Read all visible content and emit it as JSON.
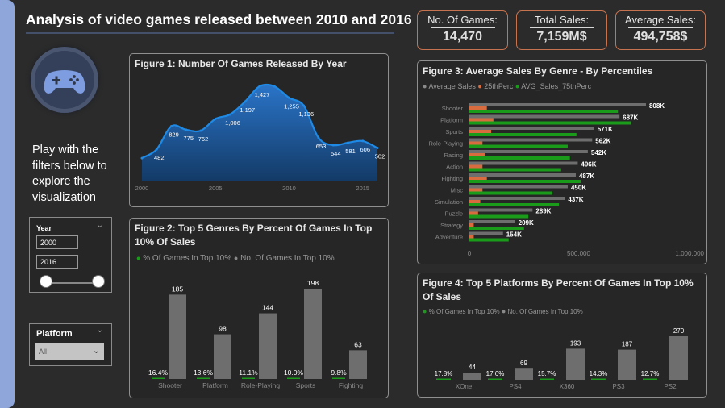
{
  "header": {
    "title": "Analysis of video games released between 2010 and 2016"
  },
  "kpis": [
    {
      "label": "No. Of Games:",
      "value": "14,470"
    },
    {
      "label": "Total Sales:",
      "value": "7,159M$"
    },
    {
      "label": "Average Sales:",
      "value": "494,758$"
    }
  ],
  "sidebar": {
    "logo_icon": "gamepad-icon",
    "text": "Play with the filters below to explore the visualization",
    "year_slicer": {
      "title": "Year",
      "from": "2000",
      "to": "2016"
    },
    "platform_slicer": {
      "title": "Platform",
      "selected": "All"
    }
  },
  "colors": {
    "blue_line": "#1f8ae6",
    "grey_bar": "#6e6e6e",
    "orange": "#d96c3e",
    "green": "#1a9b1a"
  },
  "chart_data": [
    {
      "id": "fig1",
      "type": "area",
      "title": "Figure 1: Number Of Games Released By Year",
      "xticks": [
        "2000",
        "2005",
        "2010",
        "2015"
      ],
      "x": [
        2000,
        2001,
        2002,
        2003,
        2004,
        2005,
        2006,
        2007,
        2008,
        2009,
        2010,
        2011,
        2012,
        2013,
        2014,
        2015,
        2016
      ],
      "values": [
        350,
        482,
        829,
        775,
        762,
        939,
        1006,
        1197,
        1427,
        1426,
        1255,
        1136,
        653,
        544,
        581,
        606,
        502
      ],
      "labels": [
        "",
        "482",
        "829",
        "775",
        "762",
        "",
        "1,006",
        "1,197",
        "1,427",
        "",
        "1,255",
        "1,136",
        "653",
        "544",
        "581",
        "606",
        "502"
      ],
      "ylim": [
        0,
        1500
      ]
    },
    {
      "id": "fig2",
      "type": "bar",
      "title_lines": [
        "Figure 2: Top 5 Genres By Percent Of Games In Top",
        "10% Of Sales"
      ],
      "legend": [
        "% Of Games In Top 10%",
        "No. Of Games In Top 10%"
      ],
      "categories": [
        "Shooter",
        "Platform",
        "Role-Playing",
        "Sports",
        "Fighting"
      ],
      "series": [
        {
          "name": "% Of Games In Top 10%",
          "values": [
            16.4,
            13.6,
            11.1,
            10.0,
            9.8
          ],
          "labels": [
            "16.4%",
            "13.6%",
            "11.1%",
            "10.0%",
            "9.8%"
          ]
        },
        {
          "name": "No. Of Games In Top 10%",
          "values": [
            185,
            98,
            144,
            198,
            63
          ],
          "labels": [
            "185",
            "98",
            "144",
            "198",
            "63"
          ]
        }
      ]
    },
    {
      "id": "fig3",
      "type": "bar",
      "orientation": "horizontal",
      "title": "Figure 3: Average Sales By Genre - By Percentiles",
      "legend": [
        "Average Sales",
        "25thPerc",
        "AVG_Sales_75thPerc"
      ],
      "categories": [
        "Shooter",
        "Platform",
        "Sports",
        "Role-Playing",
        "Racing",
        "Action",
        "Fighting",
        "Misc",
        "Simulation",
        "Puzzle",
        "Strategy",
        "Adventure"
      ],
      "series": [
        {
          "name": "Average Sales",
          "values": [
            808000,
            687000,
            571000,
            562000,
            542000,
            496000,
            487000,
            450000,
            437000,
            289000,
            209000,
            154000
          ],
          "labels": [
            "808K",
            "687K",
            "571K",
            "562K",
            "542K",
            "496K",
            "487K",
            "450K",
            "437K",
            "289K",
            "209K",
            "154K"
          ]
        },
        {
          "name": "25thPerc",
          "values": [
            80000,
            110000,
            100000,
            60000,
            70000,
            60000,
            80000,
            60000,
            50000,
            40000,
            20000,
            20000
          ]
        },
        {
          "name": "AVG_Sales_75thPerc",
          "values": [
            680000,
            740000,
            490000,
            450000,
            460000,
            420000,
            510000,
            380000,
            410000,
            270000,
            250000,
            180000
          ]
        }
      ],
      "xticks": [
        "0",
        "500,000",
        "1,000,000"
      ],
      "xlim": [
        0,
        1000000
      ]
    },
    {
      "id": "fig4",
      "type": "bar",
      "title_lines": [
        "Figure 4: Top 5 Platforms By Percent Of Games In Top 10%",
        "Of Sales"
      ],
      "legend": [
        "% Of Games In Top 10%",
        "No. Of Games In Top 10%"
      ],
      "categories": [
        "XOne",
        "PS4",
        "X360",
        "PS3",
        "PS2"
      ],
      "series": [
        {
          "name": "% Of Games In Top 10%",
          "values": [
            17.8,
            17.6,
            15.7,
            14.3,
            12.7
          ],
          "labels": [
            "17.8%",
            "17.6%",
            "15.7%",
            "14.3%",
            "12.7%"
          ]
        },
        {
          "name": "No. Of Games In Top 10%",
          "values": [
            44,
            69,
            193,
            187,
            270
          ],
          "labels": [
            "44",
            "69",
            "193",
            "187",
            "270"
          ]
        }
      ]
    }
  ]
}
